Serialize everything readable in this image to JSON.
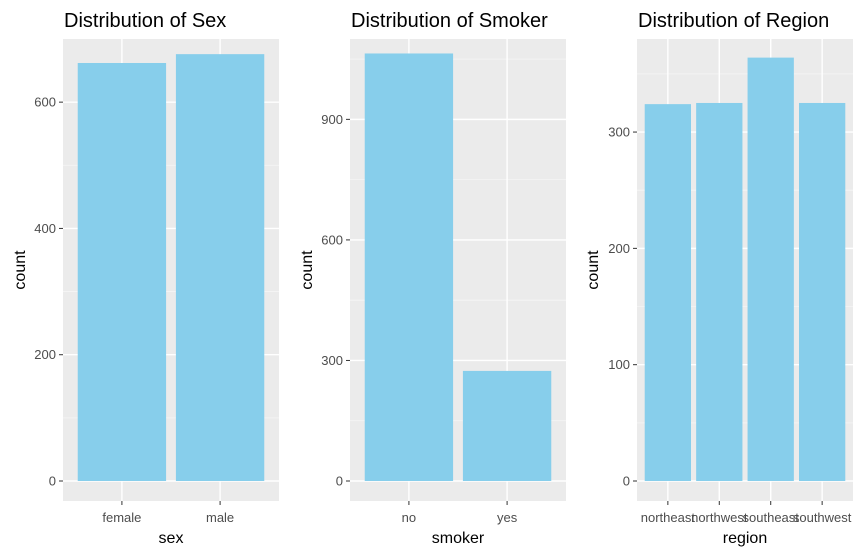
{
  "colors": {
    "panel_background": "#ebebeb",
    "grid_major": "#ffffff",
    "grid_minor": "#f5f5f5",
    "bar_fill": "#87ceeb",
    "tick": "#333333"
  },
  "chart_data": [
    {
      "type": "bar",
      "title": "Distribution of Sex",
      "xlabel": "sex",
      "ylabel": "count",
      "categories": [
        "female",
        "male"
      ],
      "values": [
        662,
        676
      ],
      "ylim": [
        0,
        700
      ],
      "yticks": [
        0,
        200,
        400,
        600
      ],
      "grid": true,
      "legend": "none"
    },
    {
      "type": "bar",
      "title": "Distribution of Smoker",
      "xlabel": "smoker",
      "ylabel": "count",
      "categories": [
        "no",
        "yes"
      ],
      "values": [
        1064,
        274
      ],
      "ylim": [
        0,
        1100
      ],
      "yticks": [
        0,
        300,
        600,
        900
      ],
      "grid": true,
      "legend": "none"
    },
    {
      "type": "bar",
      "title": "Distribution of Region",
      "xlabel": "region",
      "ylabel": "count",
      "categories": [
        "northeast",
        "northwest",
        "southeast",
        "southwest"
      ],
      "values": [
        324,
        325,
        364,
        325
      ],
      "ylim": [
        0,
        380
      ],
      "yticks": [
        0,
        100,
        200,
        300
      ],
      "grid": true,
      "legend": "none"
    }
  ]
}
